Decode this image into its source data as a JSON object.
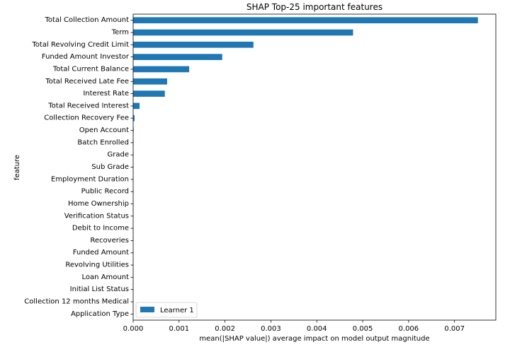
{
  "chart_data": {
    "type": "bar",
    "orientation": "horizontal",
    "title": "SHAP Top-25 important features",
    "xlabel": "mean(|SHAP value|) average impact on model output magnitude",
    "ylabel": "feature",
    "xlim": [
      0,
      0.0079
    ],
    "xticks": [
      0.0,
      0.001,
      0.002,
      0.003,
      0.004,
      0.005,
      0.006,
      0.007
    ],
    "xtick_labels": [
      "0.000",
      "0.001",
      "0.002",
      "0.003",
      "0.004",
      "0.005",
      "0.006",
      "0.007"
    ],
    "grid": false,
    "legend_position": "bottom-left",
    "categories": [
      "Total Collection Amount",
      "Term",
      "Total Revolving Credit Limit",
      "Funded Amount Investor",
      "Total Current Balance",
      "Total Received Late Fee",
      "Interest Rate",
      "Total Received Interest",
      "Collection Recovery Fee",
      "Open Account",
      "Batch Enrolled",
      "Grade",
      "Sub Grade",
      "Employment Duration",
      "Public Record",
      "Home Ownership",
      "Verification Status",
      "Debit to Income",
      "Recoveries",
      "Funded Amount",
      "Revolving Utilities",
      "Loan Amount",
      "Initial List Status",
      "Collection 12 months Medical",
      "Application Type"
    ],
    "series": [
      {
        "name": "Learner 1",
        "color": "#1f77b4",
        "values": [
          0.00751,
          0.00479,
          0.00262,
          0.00194,
          0.00122,
          0.00074,
          0.00069,
          0.00014,
          3e-05,
          1e-05,
          8e-06,
          6e-06,
          5e-06,
          4e-06,
          3e-06,
          3e-06,
          2e-06,
          2e-06,
          2e-06,
          1e-06,
          1e-06,
          1e-06,
          1e-06,
          1e-06,
          1e-06
        ]
      }
    ]
  }
}
